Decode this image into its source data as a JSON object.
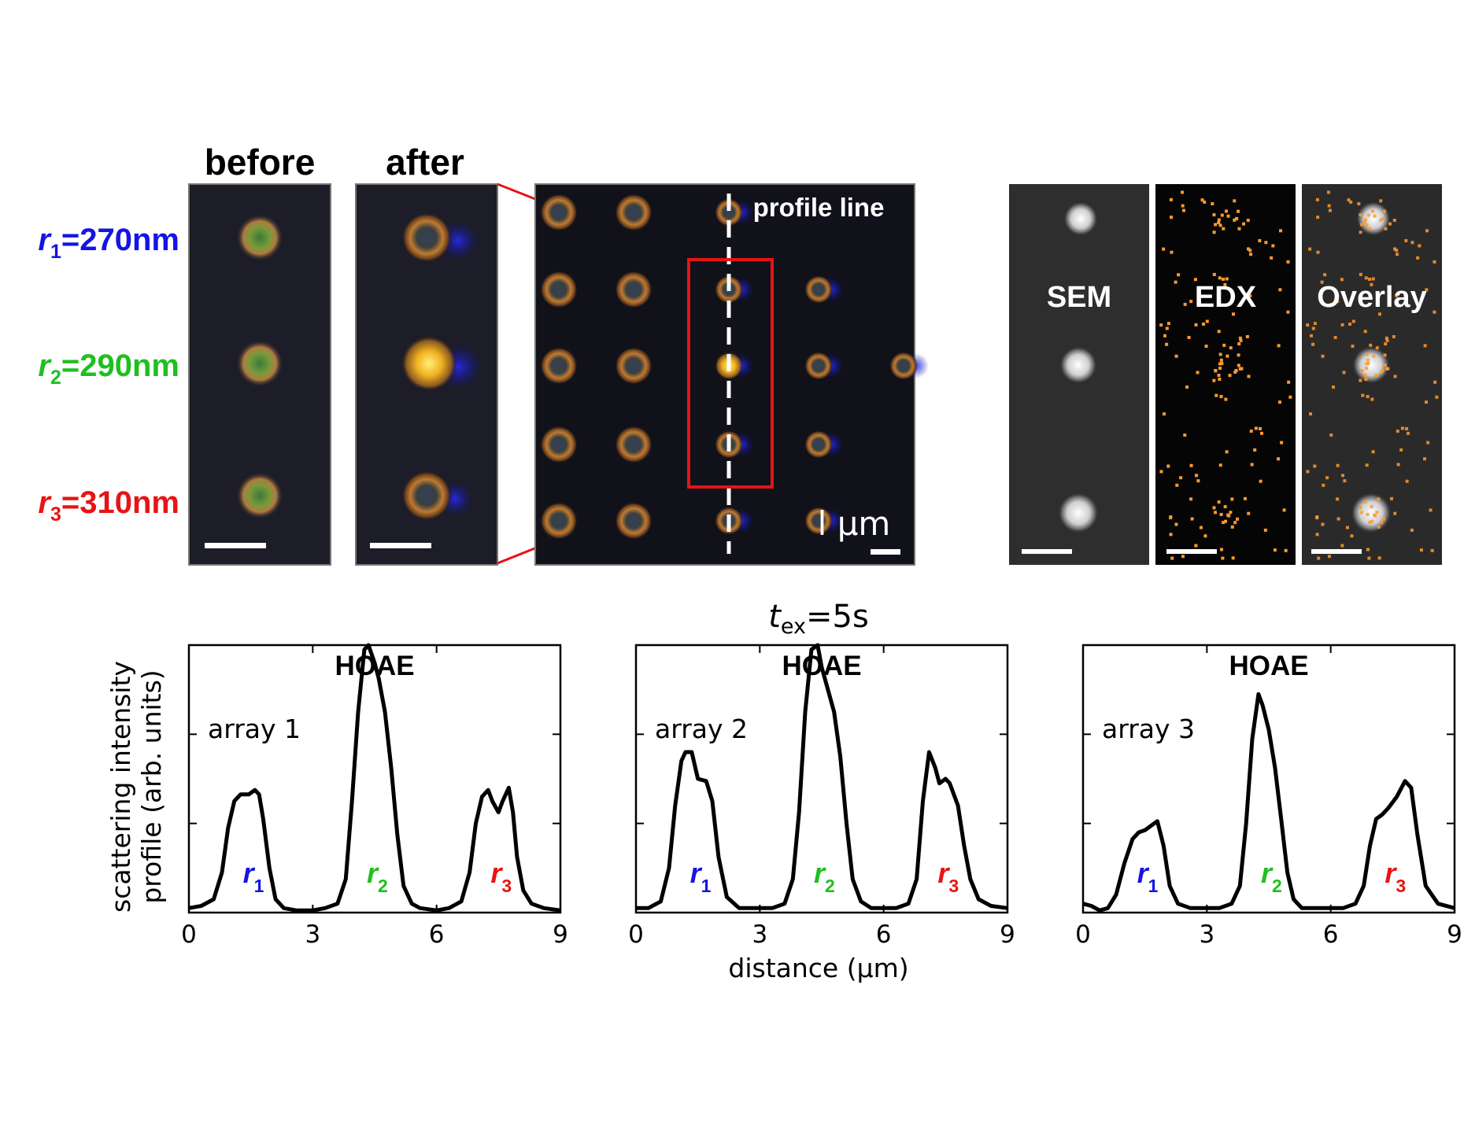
{
  "images": {
    "before_label": "before",
    "after_label": "after",
    "profile_line_label": "profile line",
    "scale_label": "l μm",
    "sem_label": "SEM",
    "edx_label": "EDX",
    "overlay_label": "Overlay"
  },
  "radii": [
    {
      "symbol": "r",
      "sub": "1",
      "value": "=270nm",
      "color": "#1414e6"
    },
    {
      "symbol": "r",
      "sub": "2",
      "value": "=290nm",
      "color": "#1fbf1f"
    },
    {
      "symbol": "r",
      "sub": "3",
      "value": "=310nm",
      "color": "#e61414"
    }
  ],
  "exposure": {
    "symbol": "t",
    "sub": "ex",
    "value": "=5s"
  },
  "colors": {
    "r1": "#1414e6",
    "r2": "#1fbf1f",
    "r3": "#e61414",
    "highlight": "#e61414",
    "edx": "#ff9a2e"
  },
  "chart_data": {
    "type": "line",
    "xlabel": "distance (μm)",
    "ylabel_line1": "scattering intensity",
    "ylabel_line2": "profile (arb. units)",
    "xlim": [
      0,
      9
    ],
    "xticks": [
      0,
      3,
      6,
      9
    ],
    "ylim": [
      0,
      1.2
    ],
    "panels": [
      {
        "title": "HOAE",
        "label": "array 1",
        "peak_labels": [
          {
            "symbol": "r",
            "sub": "1",
            "x": 1.5,
            "color": "#1414e6"
          },
          {
            "symbol": "r",
            "sub": "2",
            "x": 4.5,
            "color": "#1fbf1f"
          },
          {
            "symbol": "r",
            "sub": "3",
            "x": 7.5,
            "color": "#e61414"
          }
        ],
        "x": [
          0,
          0.3,
          0.6,
          0.8,
          0.95,
          1.1,
          1.25,
          1.45,
          1.6,
          1.7,
          1.8,
          1.95,
          2.1,
          2.3,
          2.6,
          3.0,
          3.3,
          3.6,
          3.8,
          3.95,
          4.1,
          4.25,
          4.35,
          4.5,
          4.6,
          4.75,
          4.9,
          5.05,
          5.2,
          5.4,
          5.6,
          6.0,
          6.3,
          6.6,
          6.8,
          6.95,
          7.1,
          7.25,
          7.35,
          7.5,
          7.6,
          7.75,
          7.85,
          7.95,
          8.1,
          8.3,
          8.6,
          9.0
        ],
        "y": [
          0.02,
          0.03,
          0.06,
          0.18,
          0.38,
          0.5,
          0.53,
          0.53,
          0.55,
          0.53,
          0.42,
          0.2,
          0.06,
          0.02,
          0.01,
          0.01,
          0.02,
          0.04,
          0.15,
          0.5,
          0.9,
          1.18,
          1.2,
          1.12,
          1.05,
          0.9,
          0.65,
          0.35,
          0.12,
          0.04,
          0.02,
          0.01,
          0.02,
          0.05,
          0.18,
          0.4,
          0.52,
          0.55,
          0.5,
          0.45,
          0.5,
          0.56,
          0.45,
          0.25,
          0.1,
          0.04,
          0.02,
          0.01
        ]
      },
      {
        "title": "HOAE",
        "label": "array 2",
        "peak_labels": [
          {
            "symbol": "r",
            "sub": "1",
            "x": 1.5,
            "color": "#1414e6"
          },
          {
            "symbol": "r",
            "sub": "2",
            "x": 4.5,
            "color": "#1fbf1f"
          },
          {
            "symbol": "r",
            "sub": "3",
            "x": 7.5,
            "color": "#e61414"
          }
        ],
        "x": [
          0,
          0.3,
          0.6,
          0.8,
          0.95,
          1.1,
          1.2,
          1.35,
          1.5,
          1.7,
          1.85,
          2.0,
          2.2,
          2.5,
          3.0,
          3.3,
          3.6,
          3.8,
          3.95,
          4.1,
          4.25,
          4.4,
          4.5,
          4.65,
          4.8,
          4.95,
          5.1,
          5.25,
          5.45,
          5.7,
          6.0,
          6.3,
          6.6,
          6.8,
          6.95,
          7.1,
          7.25,
          7.35,
          7.5,
          7.6,
          7.8,
          7.95,
          8.1,
          8.3,
          8.6,
          9.0
        ],
        "y": [
          0.02,
          0.02,
          0.05,
          0.2,
          0.48,
          0.68,
          0.72,
          0.72,
          0.6,
          0.59,
          0.5,
          0.25,
          0.07,
          0.02,
          0.02,
          0.02,
          0.04,
          0.15,
          0.45,
          0.9,
          1.18,
          1.2,
          1.1,
          1.0,
          0.9,
          0.7,
          0.4,
          0.15,
          0.05,
          0.02,
          0.02,
          0.02,
          0.04,
          0.15,
          0.5,
          0.72,
          0.65,
          0.58,
          0.6,
          0.58,
          0.48,
          0.3,
          0.15,
          0.06,
          0.03,
          0.02
        ]
      },
      {
        "title": "HOAE",
        "label": "array 3",
        "peak_labels": [
          {
            "symbol": "r",
            "sub": "1",
            "x": 1.5,
            "color": "#1414e6"
          },
          {
            "symbol": "r",
            "sub": "2",
            "x": 4.5,
            "color": "#1fbf1f"
          },
          {
            "symbol": "r",
            "sub": "3",
            "x": 7.5,
            "color": "#e61414"
          }
        ],
        "x": [
          0,
          0.2,
          0.4,
          0.6,
          0.8,
          1.0,
          1.2,
          1.35,
          1.5,
          1.65,
          1.8,
          1.95,
          2.1,
          2.3,
          2.6,
          3.0,
          3.3,
          3.6,
          3.8,
          3.95,
          4.1,
          4.25,
          4.35,
          4.5,
          4.65,
          4.8,
          4.95,
          5.1,
          5.3,
          5.6,
          6.0,
          6.3,
          6.6,
          6.8,
          6.95,
          7.1,
          7.25,
          7.4,
          7.6,
          7.8,
          7.95,
          8.1,
          8.3,
          8.6,
          9.0
        ],
        "y": [
          0.04,
          0.03,
          0.01,
          0.02,
          0.08,
          0.22,
          0.33,
          0.36,
          0.37,
          0.39,
          0.41,
          0.3,
          0.12,
          0.04,
          0.02,
          0.02,
          0.02,
          0.04,
          0.12,
          0.4,
          0.78,
          0.98,
          0.93,
          0.82,
          0.65,
          0.42,
          0.18,
          0.06,
          0.02,
          0.02,
          0.02,
          0.02,
          0.04,
          0.12,
          0.3,
          0.42,
          0.44,
          0.47,
          0.52,
          0.59,
          0.56,
          0.35,
          0.12,
          0.04,
          0.02
        ]
      }
    ]
  }
}
